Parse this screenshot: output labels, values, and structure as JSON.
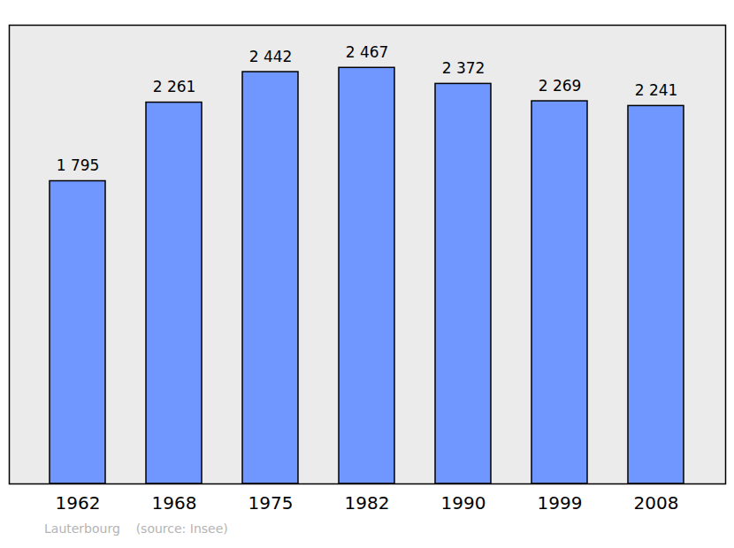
{
  "chart_data": {
    "type": "bar",
    "categories": [
      "1962",
      "1968",
      "1975",
      "1982",
      "1990",
      "1999",
      "2008"
    ],
    "values": [
      1795,
      2261,
      2442,
      2467,
      2372,
      2269,
      2241
    ],
    "value_labels": [
      "1 795",
      "2 261",
      "2 442",
      "2 467",
      "2 372",
      "2 269",
      "2 241"
    ],
    "color": "#6f97ff",
    "ylim": [
      0,
      2720
    ],
    "grid": false,
    "data_labels": true,
    "tick_labels": "x",
    "caption": "Lauterbourg    (source: Insee)"
  }
}
